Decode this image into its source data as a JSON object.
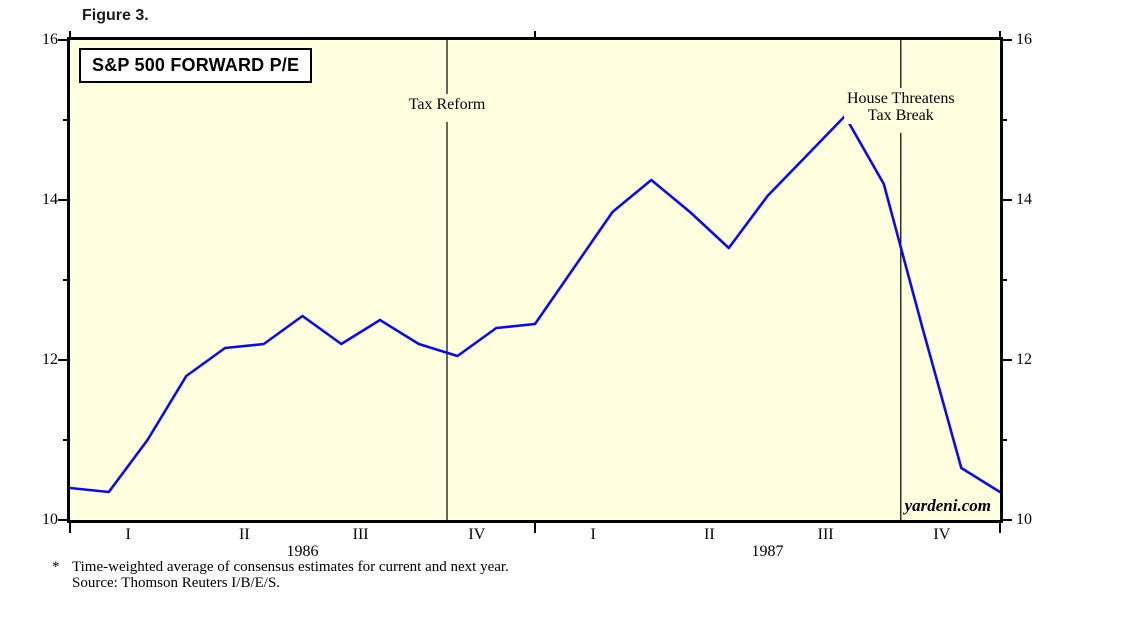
{
  "figure_label": "Figure 3.",
  "chart_title": "S&P 500 FORWARD P/E",
  "watermark": "yardeni.com",
  "footnote": {
    "marker": "*",
    "line1": "Time-weighted average of consensus estimates for current and next year.",
    "line2": "Source: Thomson Reuters I/B/E/S."
  },
  "colors": {
    "plot_background": "#FFFFE0",
    "line": "#0A0AEE",
    "axis": "#000000",
    "annotation_line": "#000000"
  },
  "chart_data": {
    "type": "line",
    "title": "S&P 500 FORWARD P/E",
    "ylabel": "",
    "xlabel": "",
    "ylim": [
      10,
      16
    ],
    "y_major_ticks": [
      10,
      12,
      14,
      16
    ],
    "y_minor_ticks": [
      11,
      13,
      15
    ],
    "grid": false,
    "legend": "none",
    "x": [
      "Jan 1986",
      "Feb 1986",
      "Mar 1986",
      "Apr 1986",
      "May 1986",
      "Jun 1986",
      "Jul 1986",
      "Aug 1986",
      "Sep 1986",
      "Oct 1986",
      "Nov 1986",
      "Dec 1986",
      "Jan 1987",
      "Feb 1987",
      "Mar 1987",
      "Apr 1987",
      "May 1987",
      "Jun 1987",
      "Jul 1987",
      "Aug 1987",
      "Sep 1987",
      "Oct 1987",
      "Nov 1987",
      "Dec 1987",
      "Jan 1988"
    ],
    "values": [
      10.4,
      10.35,
      11.0,
      11.8,
      12.15,
      12.2,
      12.55,
      12.2,
      12.5,
      12.2,
      12.05,
      12.4,
      12.45,
      13.15,
      13.85,
      14.25,
      13.85,
      13.4,
      14.05,
      14.55,
      15.05,
      14.2,
      12.4,
      10.65,
      10.35
    ],
    "quarter_labels": [
      "I",
      "II",
      "III",
      "IV",
      "I",
      "II",
      "III",
      "IV"
    ],
    "year_labels": [
      "1986",
      "1987"
    ],
    "annotations": [
      {
        "line1": "Tax Reform",
        "x_month_index": 9.73
      },
      {
        "line1": "House Threatens",
        "line2": "Tax Break",
        "x_month_index": 21.44
      }
    ]
  }
}
